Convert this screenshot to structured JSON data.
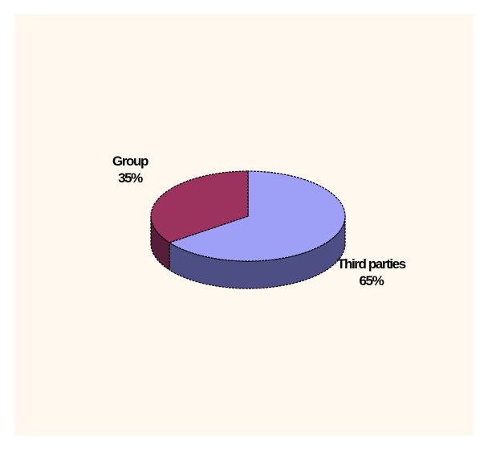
{
  "chart_data": {
    "type": "pie",
    "style": "3d",
    "categories": [
      "Third parties",
      "Group"
    ],
    "values": [
      65,
      35
    ],
    "labels": [
      {
        "name": "Third parties",
        "percent": "65%"
      },
      {
        "name": "Group",
        "percent": "35%"
      }
    ],
    "colors": {
      "Third parties": {
        "top": "#9e9ff6",
        "side": "#4d4e84"
      },
      "Group": {
        "top": "#9b335e",
        "side": "#561e3a"
      }
    },
    "background": "#fef8ee",
    "legend": "none"
  }
}
